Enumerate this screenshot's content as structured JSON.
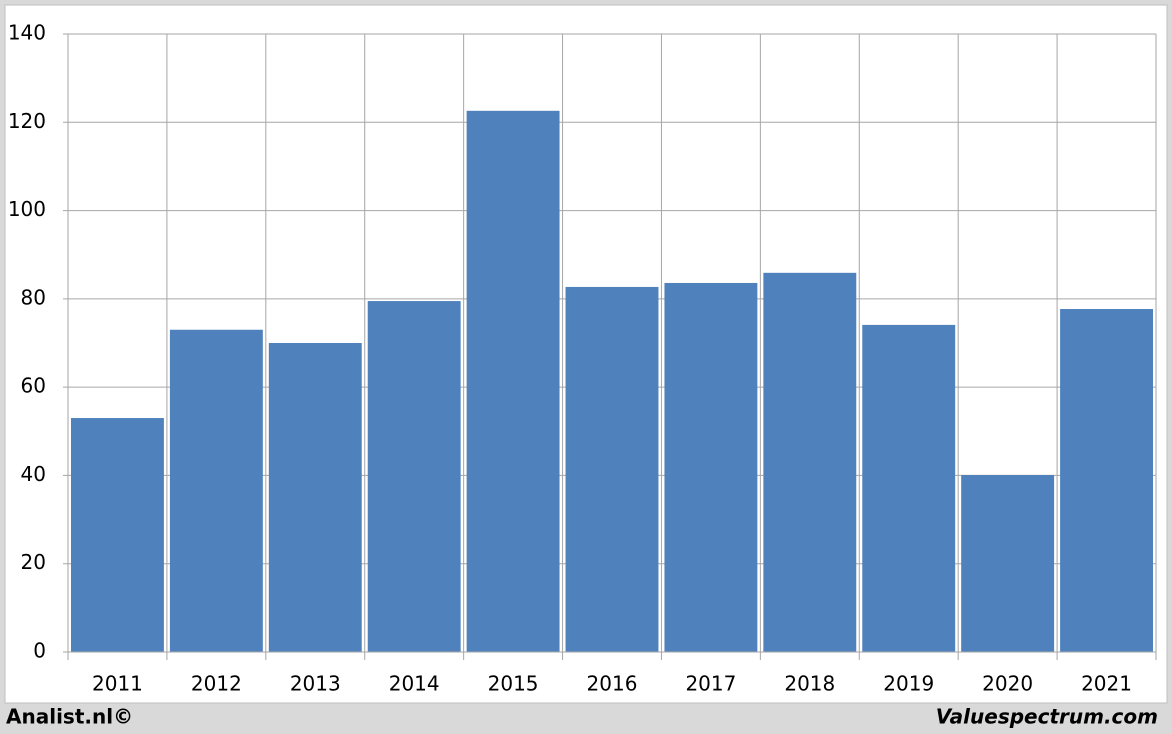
{
  "chart_data": {
    "type": "bar",
    "categories": [
      "2011",
      "2012",
      "2013",
      "2014",
      "2015",
      "2016",
      "2017",
      "2018",
      "2019",
      "2020",
      "2021"
    ],
    "values": [
      53,
      73,
      70,
      79.5,
      122.6,
      82.7,
      83.6,
      85.9,
      74.1,
      40.1,
      77.7
    ],
    "color": "#4f81bd",
    "ylim": [
      0,
      140
    ],
    "yticks": [
      0,
      20,
      40,
      60,
      80,
      100,
      120,
      140
    ],
    "grid": true
  },
  "footer": {
    "left": "Analist.nl©",
    "right": "Valuespectrum.com"
  }
}
